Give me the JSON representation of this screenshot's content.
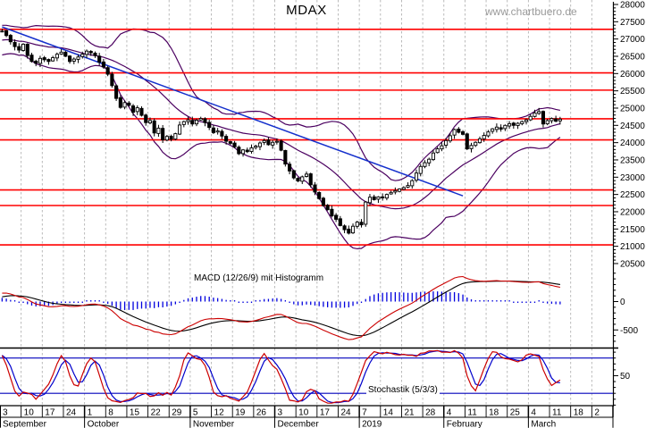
{
  "title": "MDAX",
  "watermark": "www.chartbuero.de",
  "colors": {
    "up_candle": "#ffffff",
    "down_candle": "#000000",
    "candle_border": "#000000",
    "bollinger": "#4b0060",
    "trendline": "#1530cc",
    "level_line": "#ff0000",
    "macd_line": "#cc0000",
    "macd_signal": "#000000",
    "histogram": "#0000dd",
    "stoch_k": "#cc0000",
    "stoch_d": "#0000cc",
    "stoch_bands": "#0000bb",
    "grid": "#b3b3b3",
    "axis": "#000000",
    "watermark": "#9a9a9a"
  },
  "chart_data": {
    "type": "candlestick",
    "title": "MDAX",
    "legend_position": "none",
    "grid": "vertical-dashed-weekly",
    "price_axis": {
      "min": 20500,
      "max": 28000,
      "step": 500,
      "minor_step": 100,
      "side": "right"
    },
    "x_weeks": [
      "3",
      "10",
      "17",
      "24",
      "1",
      "8",
      "15",
      "22",
      "29",
      "5",
      "12",
      "19",
      "26",
      "3",
      "10",
      "17",
      "24",
      "7",
      "14",
      "21",
      "28",
      "4",
      "11",
      "18",
      "25",
      "4",
      "11",
      "18",
      "2"
    ],
    "x_months": [
      {
        "label": "September",
        "span": 4
      },
      {
        "label": "October",
        "span": 5
      },
      {
        "label": "November",
        "span": 4
      },
      {
        "label": "December",
        "span": 4
      },
      {
        "label": "2019",
        "span": 4
      },
      {
        "label": "February",
        "span": 4
      },
      {
        "label": "March",
        "span": 4
      }
    ],
    "resistance_support_levels": [
      27280,
      26020,
      25520,
      24690,
      24080,
      22630,
      22180,
      21040
    ],
    "trendline": {
      "from_day": 0,
      "from_price": 27350,
      "to_day": 109,
      "to_price": 22460
    },
    "indicator_warmup_closes": [
      26600,
      26700,
      26820,
      26900,
      27000,
      27080,
      27160,
      27220
    ],
    "daily_closes": [
      27230,
      27100,
      26920,
      26780,
      26680,
      26850,
      26520,
      26350,
      26300,
      26440,
      26400,
      26350,
      26460,
      26560,
      26620,
      26500,
      26350,
      26420,
      26480,
      26560,
      26650,
      26600,
      26520,
      26330,
      26190,
      25980,
      25650,
      25280,
      25020,
      25160,
      25080,
      24880,
      25010,
      24790,
      24580,
      24640,
      24280,
      24420,
      24080,
      24180,
      24100,
      24260,
      24510,
      24610,
      24660,
      24540,
      24650,
      24700,
      24580,
      24440,
      24290,
      24340,
      24190,
      24040,
      23980,
      23880,
      23680,
      23790,
      23740,
      23850,
      23900,
      23990,
      24060,
      23940,
      24010,
      24040,
      23780,
      23380,
      23180,
      22980,
      22890,
      23010,
      23090,
      22780,
      22570,
      22380,
      22180,
      22060,
      21880,
      21780,
      21600,
      21480,
      21380,
      21580,
      21700,
      21620,
      22280,
      22420,
      22350,
      22430,
      22400,
      22500,
      22560,
      22610,
      22660,
      22700,
      22760,
      22900,
      23120,
      23310,
      23420,
      23520,
      23700,
      23820,
      23910,
      24060,
      24200,
      24380,
      24300,
      24240,
      23820,
      23920,
      24010,
      24110,
      24210,
      24310,
      24400,
      24450,
      24390,
      24500,
      24550,
      24500,
      24560,
      24610,
      24660,
      24760,
      24860,
      24900,
      24540,
      24640,
      24700,
      24620,
      24680
    ],
    "bollinger": {
      "period": 20,
      "stddev_mult": 2
    },
    "macd_panel": {
      "label": "MACD (12/26/9) mit Histogramm",
      "fast": 12,
      "slow": 26,
      "signal": 9,
      "axis_labels": [
        0,
        -500
      ]
    },
    "stochastic_panel": {
      "label": "Stochastik (5/3/3)",
      "k_period": 5,
      "k_smooth": 3,
      "d_period": 3,
      "upper_band": 80,
      "lower_band": 20,
      "axis_labels": [
        50
      ]
    }
  }
}
